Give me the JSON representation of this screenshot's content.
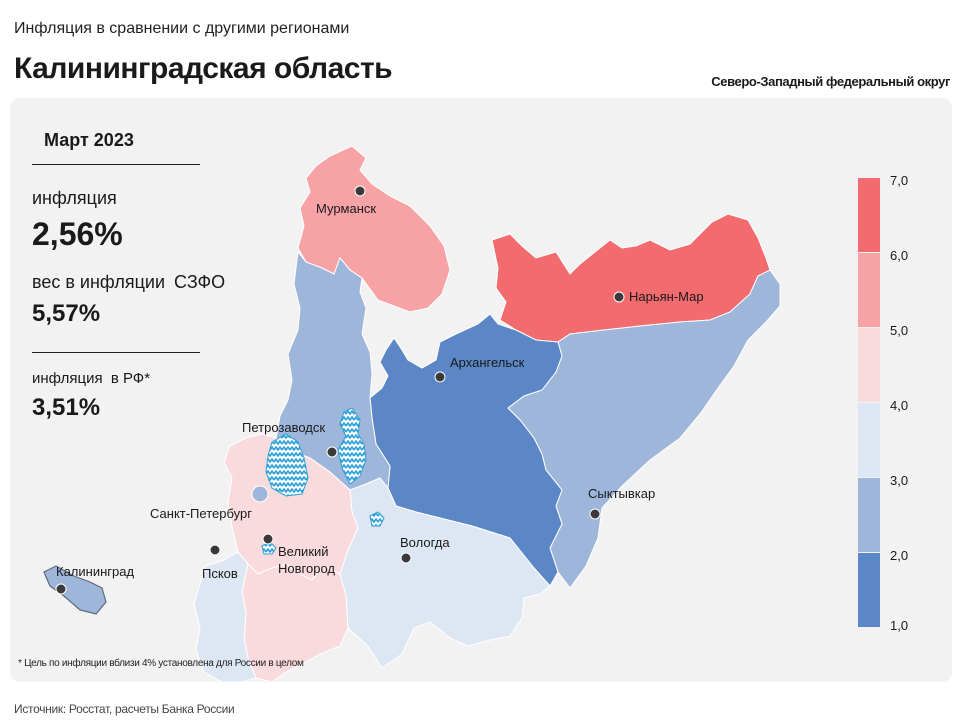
{
  "header": {
    "subtitle": "Инфляция в сравнении с другими регионами",
    "title": "Калининградская область",
    "district": "Северо-Западный федеральный округ"
  },
  "info": {
    "period": "Март 2023",
    "inflation_label": "инфляция",
    "inflation_value": "2,56%",
    "weight_label": "вес в инфляции",
    "weight_suffix": "СЗФО",
    "weight_value": "5,57%",
    "rf_label": "инфляция",
    "rf_suffix": "в РФ*",
    "rf_value": "3,51%"
  },
  "legend": {
    "ticks": [
      "7,0",
      "6,0",
      "5,0",
      "4,0",
      "3,0",
      "2,0",
      "1,0"
    ],
    "colors": [
      "#f26b6e",
      "#f7a3a6",
      "#f9dadd",
      "#dde6f3",
      "#9db6da",
      "#5b87c6"
    ]
  },
  "map": {
    "colors": {
      "murmansk": "#f7a3a6",
      "nenets": "#f26b6e",
      "arkhangelsk": "#5b87c6",
      "karelia": "#9db6da",
      "komi": "#9db6da",
      "leningrad": "#f9dadd",
      "spb": "#9db6da",
      "pskov": "#dde6f3",
      "novgorod": "#f9dadd",
      "vologda": "#dde6f3",
      "kaliningrad": "#9db6da",
      "lakes": "#2aa0d8"
    },
    "cities": {
      "murmansk": "Мурманск",
      "naryan_mar": "Нарьян-Мар",
      "arkhangelsk": "Архангельск",
      "petrozavodsk": "Петрозаводск",
      "syktyvkar": "Сыктывкар",
      "spb": "Санкт-Петербург",
      "pskov": "Псков",
      "novgorod_line1": "Великий",
      "novgorod_line2": "Новгород",
      "vologda": "Вологда",
      "kaliningrad": "Калининград"
    }
  },
  "footnote": "* Цель по инфляции вблизи 4% установлена для России в целом",
  "source": "Источник: Росстат, расчеты Банка России"
}
